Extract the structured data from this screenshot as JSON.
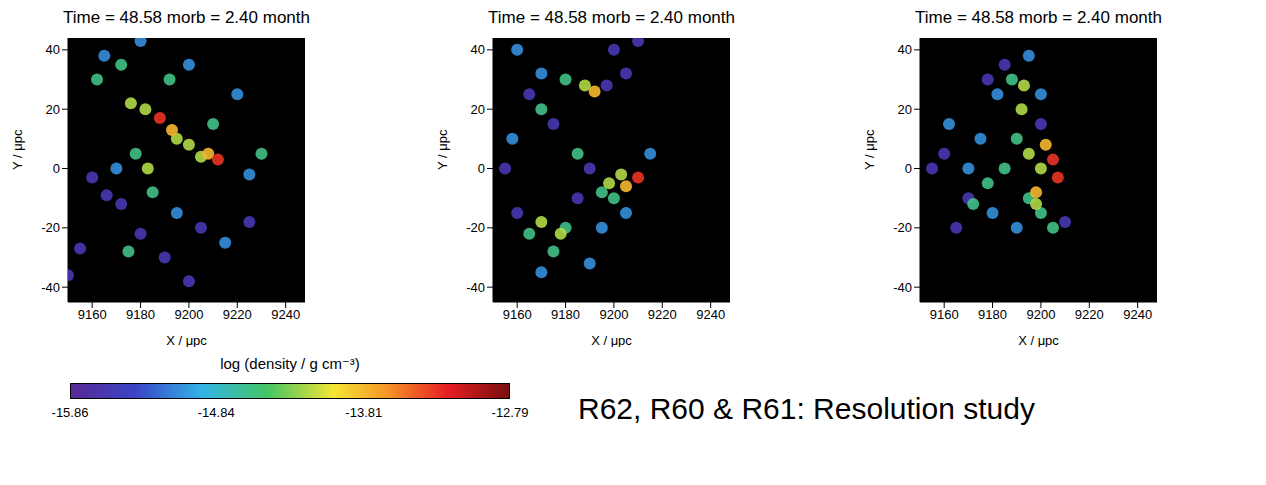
{
  "chart_data": [
    {
      "type": "scatter",
      "title": "Time = 48.58 morb = 2.40 month",
      "x_label": "X / μpc",
      "y_label": "Y / μpc",
      "xlim": [
        9150,
        9248
      ],
      "ylim": [
        -45,
        44
      ],
      "xticks": [
        9160,
        9180,
        9200,
        9220,
        9240
      ],
      "yticks": [
        -40,
        -20,
        0,
        20,
        40
      ],
      "x": [
        9155,
        9166,
        9172,
        9160,
        9190,
        9205,
        9225,
        9200,
        9180,
        9150,
        9165,
        9180,
        9200,
        9220,
        9225,
        9170,
        9195,
        9215,
        9162,
        9172,
        9192,
        9230,
        9178,
        9185,
        9210,
        9175,
        9176,
        9182,
        9195,
        9200,
        9205,
        9183,
        9193,
        9208,
        9188,
        9212
      ],
      "y": [
        -27,
        -9,
        -12,
        -3,
        -30,
        -20,
        -18,
        -38,
        -22,
        -36,
        38,
        43,
        35,
        25,
        -2,
        0,
        -15,
        -25,
        30,
        35,
        30,
        5,
        5,
        -8,
        15,
        -28,
        22,
        20,
        10,
        8,
        4,
        0,
        13,
        5,
        17,
        3
      ],
      "log_density": [
        -15.6,
        -15.6,
        -15.6,
        -15.6,
        -15.6,
        -15.6,
        -15.6,
        -15.6,
        -15.6,
        -15.6,
        -15.1,
        -15.1,
        -15.1,
        -15.1,
        -15.1,
        -15.1,
        -15.1,
        -15.1,
        -14.6,
        -14.6,
        -14.6,
        -14.6,
        -14.6,
        -14.6,
        -14.6,
        -14.6,
        -14.2,
        -14.2,
        -14.2,
        -14.2,
        -14.2,
        -14.2,
        -13.8,
        -13.8,
        -13.3,
        -13.3
      ]
    },
    {
      "type": "scatter",
      "title": "Time = 48.58 morb = 2.40 month",
      "x_label": "X / μpc",
      "y_label": "Y / μpc",
      "xlim": [
        9150,
        9248
      ],
      "ylim": [
        -45,
        44
      ],
      "xticks": [
        9160,
        9180,
        9200,
        9220,
        9240
      ],
      "yticks": [
        -40,
        -20,
        0,
        20,
        40
      ],
      "x": [
        9200,
        9205,
        9197,
        9210,
        9190,
        9185,
        9155,
        9160,
        9175,
        9165,
        9160,
        9170,
        9158,
        9195,
        9190,
        9170,
        9205,
        9215,
        9180,
        9170,
        9165,
        9175,
        9180,
        9185,
        9195,
        9200,
        9188,
        9178,
        9170,
        9198,
        9203,
        9192,
        9205,
        9210
      ],
      "y": [
        40,
        32,
        28,
        43,
        0,
        -10,
        0,
        -15,
        15,
        25,
        40,
        32,
        10,
        -20,
        -32,
        -35,
        -15,
        5,
        30,
        20,
        -22,
        -28,
        -20,
        5,
        -8,
        -10,
        28,
        -22,
        -18,
        -5,
        -2,
        26,
        -6,
        -3
      ],
      "log_density": [
        -15.6,
        -15.6,
        -15.6,
        -15.6,
        -15.6,
        -15.6,
        -15.6,
        -15.6,
        -15.6,
        -15.6,
        -15.1,
        -15.1,
        -15.1,
        -15.1,
        -15.1,
        -15.1,
        -15.1,
        -15.1,
        -14.6,
        -14.6,
        -14.6,
        -14.6,
        -14.6,
        -14.6,
        -14.6,
        -14.6,
        -14.2,
        -14.2,
        -14.2,
        -14.2,
        -14.2,
        -13.8,
        -13.8,
        -13.3
      ]
    },
    {
      "type": "scatter",
      "title": "Time = 48.58 morb = 2.40 month",
      "x_label": "X / μpc",
      "y_label": "Y / μpc",
      "xlim": [
        9150,
        9248
      ],
      "ylim": [
        -45,
        44
      ],
      "xticks": [
        9160,
        9180,
        9200,
        9220,
        9240
      ],
      "yticks": [
        -40,
        -20,
        0,
        20,
        40
      ],
      "x": [
        9160,
        9170,
        9155,
        9178,
        9185,
        9200,
        9165,
        9210,
        9162,
        9175,
        9180,
        9190,
        9195,
        9182,
        9200,
        9170,
        9190,
        9185,
        9178,
        9200,
        9205,
        9195,
        9188,
        9172,
        9192,
        9195,
        9198,
        9193,
        9200,
        9202,
        9198,
        9205,
        9207
      ],
      "y": [
        5,
        -10,
        0,
        30,
        35,
        15,
        -20,
        -18,
        15,
        10,
        -15,
        -20,
        38,
        25,
        25,
        0,
        10,
        0,
        -5,
        -15,
        -20,
        -10,
        30,
        -12,
        20,
        5,
        -12,
        28,
        0,
        8,
        -8,
        3,
        -3
      ],
      "log_density": [
        -15.6,
        -15.6,
        -15.6,
        -15.6,
        -15.6,
        -15.6,
        -15.6,
        -15.6,
        -15.1,
        -15.1,
        -15.1,
        -15.1,
        -15.1,
        -15.1,
        -15.1,
        -15.1,
        -14.6,
        -14.6,
        -14.6,
        -14.6,
        -14.6,
        -14.6,
        -14.6,
        -14.6,
        -14.2,
        -14.2,
        -14.2,
        -14.2,
        -14.2,
        -13.8,
        -13.8,
        -13.3,
        -13.3
      ]
    }
  ],
  "color_bar": {
    "label": "log (density / g cm⁻³)",
    "range": [
      -15.86,
      -12.79
    ],
    "ticks": [
      -15.86,
      -14.84,
      -13.81,
      -12.79
    ]
  },
  "caption": "R62, R60 & R61: Resolution study"
}
